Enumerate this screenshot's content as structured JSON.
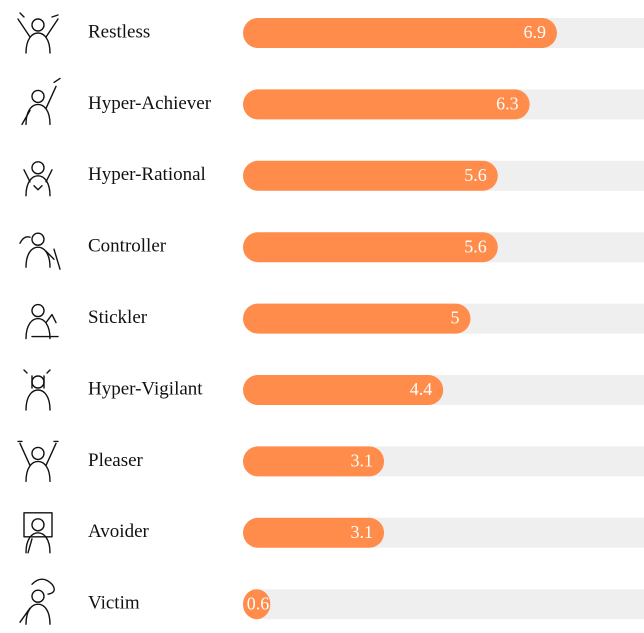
{
  "chart_data": {
    "type": "bar",
    "orientation": "horizontal",
    "categories": [
      "Restless",
      "Hyper-Achiever",
      "Hyper-Rational",
      "Controller",
      "Stickler",
      "Hyper-Vigilant",
      "Pleaser",
      "Avoider",
      "Victim"
    ],
    "values": [
      6.9,
      6.3,
      5.6,
      5.6,
      5,
      4.4,
      3.1,
      3.1,
      0.6
    ],
    "color": "#ff8c4b",
    "track_color": "#efefef"
  }
}
